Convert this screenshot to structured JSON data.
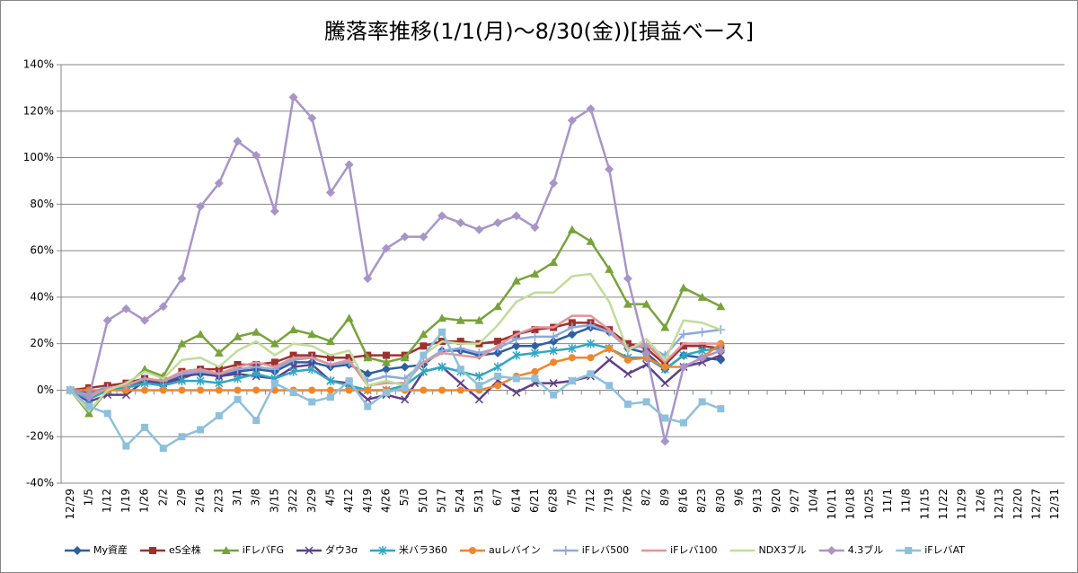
{
  "chart_data": {
    "type": "line",
    "title": "騰落率推移(1/1(月)～8/30(金))[損益ベース]",
    "categories": [
      "12/29",
      "1/5",
      "1/12",
      "1/19",
      "1/26",
      "2/2",
      "2/9",
      "2/16",
      "2/23",
      "3/1",
      "3/8",
      "3/15",
      "3/22",
      "3/29",
      "4/5",
      "4/12",
      "4/19",
      "4/26",
      "5/3",
      "5/10",
      "5/17",
      "5/24",
      "5/31",
      "6/7",
      "6/14",
      "6/21",
      "6/28",
      "7/5",
      "7/12",
      "7/19",
      "7/26",
      "8/2",
      "8/9",
      "8/16",
      "8/23",
      "8/30",
      "9/6",
      "9/13",
      "9/20",
      "9/27",
      "10/4",
      "10/11",
      "10/18",
      "10/25",
      "11/1",
      "11/8",
      "11/15",
      "11/22",
      "11/29",
      "12/6",
      "12/13",
      "12/20",
      "12/27",
      "12/31"
    ],
    "ylim": [
      -40,
      140
    ],
    "yticks": [
      {
        "value": -40,
        "label": "-40%"
      },
      {
        "value": -20,
        "label": "-20%"
      },
      {
        "value": 0,
        "label": "0%"
      },
      {
        "value": 20,
        "label": "20%"
      },
      {
        "value": 40,
        "label": "40%"
      },
      {
        "value": 60,
        "label": "60%"
      },
      {
        "value": 80,
        "label": "80%"
      },
      {
        "value": 100,
        "label": "100%"
      },
      {
        "value": 120,
        "label": "120%"
      },
      {
        "value": 140,
        "label": "140%"
      }
    ],
    "grid": true,
    "legend": "bottom",
    "series": [
      {
        "name": "My資産",
        "color": "#2e5fa3",
        "marker": "diamond",
        "values": [
          0,
          -1,
          1,
          2,
          4,
          3,
          6,
          7,
          6,
          8,
          9,
          8,
          12,
          12,
          10,
          11,
          7,
          9,
          10,
          11,
          17,
          17,
          15,
          16,
          19,
          19,
          21,
          24,
          27,
          25,
          18,
          16,
          9,
          15,
          14,
          13,
          null,
          null,
          null,
          null,
          null,
          null,
          null,
          null,
          null,
          null,
          null,
          null,
          null,
          null,
          null,
          null,
          null,
          null
        ]
      },
      {
        "name": "eS全株",
        "color": "#a0302f",
        "marker": "square",
        "values": [
          0,
          1,
          2,
          3,
          5,
          4,
          8,
          9,
          9,
          11,
          11,
          12,
          15,
          15,
          14,
          14,
          15,
          15,
          15,
          19,
          21,
          21,
          20,
          21,
          24,
          26,
          27,
          29,
          29,
          26,
          20,
          18,
          11,
          19,
          19,
          18,
          null,
          null,
          null,
          null,
          null,
          null,
          null,
          null,
          null,
          null,
          null,
          null,
          null,
          null,
          null,
          null,
          null,
          null
        ]
      },
      {
        "name": "iFレバFG",
        "color": "#77a33a",
        "marker": "triangle",
        "values": [
          0,
          -10,
          0,
          2,
          9,
          6,
          20,
          24,
          16,
          23,
          25,
          20,
          26,
          24,
          21,
          31,
          14,
          12,
          14,
          24,
          31,
          30,
          30,
          36,
          47,
          50,
          55,
          69,
          64,
          52,
          37,
          37,
          27,
          44,
          40,
          36,
          null,
          null,
          null,
          null,
          null,
          null,
          null,
          null,
          null,
          null,
          null,
          null,
          null,
          null,
          null,
          null,
          null,
          null
        ]
      },
      {
        "name": "ダウ3σ",
        "color": "#5f3f8a",
        "marker": "x",
        "values": [
          0,
          -5,
          -2,
          -2,
          4,
          3,
          5,
          8,
          6,
          7,
          6,
          5,
          10,
          11,
          4,
          3,
          -4,
          -2,
          -4,
          8,
          10,
          3,
          -4,
          4,
          -1,
          3,
          3,
          4,
          6,
          13,
          7,
          11,
          3,
          10,
          12,
          15,
          null,
          null,
          null,
          null,
          null,
          null,
          null,
          null,
          null,
          null,
          null,
          null,
          null,
          null,
          null,
          null,
          null,
          null
        ]
      },
      {
        "name": "米バラ360",
        "color": "#2fa6c4",
        "marker": "star",
        "values": [
          0,
          -4,
          0,
          1,
          3,
          2,
          4,
          4,
          3,
          5,
          7,
          5,
          8,
          9,
          4,
          2,
          0,
          0,
          2,
          8,
          10,
          8,
          6,
          10,
          15,
          16,
          17,
          18,
          20,
          18,
          14,
          14,
          9,
          15,
          17,
          18,
          null,
          null,
          null,
          null,
          null,
          null,
          null,
          null,
          null,
          null,
          null,
          null,
          null,
          null,
          null,
          null,
          null,
          null
        ]
      },
      {
        "name": "auレバイン",
        "color": "#f0862b",
        "marker": "circle",
        "values": [
          0,
          0,
          0,
          0,
          0,
          0,
          0,
          0,
          0,
          0,
          0,
          0,
          0,
          0,
          0,
          0,
          0,
          0,
          0,
          0,
          0,
          0,
          0,
          2,
          6,
          8,
          12,
          14,
          14,
          18,
          13,
          14,
          10,
          10,
          14,
          20,
          null,
          null,
          null,
          null,
          null,
          null,
          null,
          null,
          null,
          null,
          null,
          null,
          null,
          null,
          null,
          null,
          null,
          null
        ]
      },
      {
        "name": "iFレバ500",
        "color": "#8ea8dc",
        "marker": "plus",
        "values": [
          0,
          -2,
          1,
          2,
          5,
          4,
          7,
          8,
          7,
          9,
          10,
          9,
          13,
          14,
          11,
          12,
          4,
          6,
          5,
          12,
          17,
          18,
          16,
          18,
          22,
          23,
          23,
          27,
          28,
          25,
          18,
          19,
          15,
          24,
          25,
          26,
          null,
          null,
          null,
          null,
          null,
          null,
          null,
          null,
          null,
          null,
          null,
          null,
          null,
          null,
          null,
          null,
          null,
          null
        ]
      },
      {
        "name": "iFレバ100",
        "color": "#e0959a",
        "marker": "none",
        "values": [
          0,
          -3,
          1,
          2,
          5,
          4,
          8,
          9,
          7,
          10,
          12,
          10,
          14,
          14,
          11,
          13,
          2,
          3,
          3,
          12,
          16,
          15,
          14,
          19,
          24,
          27,
          27,
          32,
          32,
          26,
          18,
          20,
          12,
          20,
          20,
          20,
          null,
          null,
          null,
          null,
          null,
          null,
          null,
          null,
          null,
          null,
          null,
          null,
          null,
          null,
          null,
          null,
          null,
          null
        ]
      },
      {
        "name": "NDX3ブル",
        "color": "#c1dc99",
        "marker": "none",
        "values": [
          0,
          -9,
          0,
          3,
          8,
          5,
          13,
          14,
          10,
          17,
          21,
          15,
          20,
          19,
          15,
          17,
          2,
          4,
          2,
          15,
          21,
          20,
          20,
          28,
          38,
          42,
          42,
          49,
          50,
          38,
          17,
          22,
          13,
          30,
          29,
          26,
          null,
          null,
          null,
          null,
          null,
          null,
          null,
          null,
          null,
          null,
          null,
          null,
          null,
          null,
          null,
          null,
          null,
          null
        ]
      },
      {
        "name": "4.3ブル",
        "color": "#a895c8",
        "marker": "diamond",
        "values": [
          0,
          -3,
          30,
          35,
          30,
          36,
          48,
          79,
          89,
          107,
          101,
          77,
          126,
          117,
          85,
          97,
          48,
          61,
          66,
          66,
          75,
          72,
          69,
          72,
          75,
          70,
          89,
          116,
          121,
          95,
          48,
          16,
          -22,
          10,
          14,
          17,
          null,
          null,
          null,
          null,
          null,
          null,
          null,
          null,
          null,
          null,
          null,
          null,
          null,
          null,
          null,
          null,
          null,
          null
        ]
      },
      {
        "name": "iFレバAT",
        "color": "#8dc0dc",
        "marker": "square",
        "values": [
          0,
          -7,
          -10,
          -24,
          -16,
          -25,
          -20,
          -17,
          -11,
          -4,
          -13,
          3,
          -1,
          -5,
          -3,
          4,
          -7,
          -1,
          1,
          15,
          25,
          9,
          2,
          6,
          5,
          5,
          -2,
          4,
          7,
          2,
          -6,
          -5,
          -12,
          -14,
          -5,
          -8,
          null,
          null,
          null,
          null,
          null,
          null,
          null,
          null,
          null,
          null,
          null,
          null,
          null,
          null,
          null,
          null,
          null,
          null
        ]
      }
    ]
  }
}
